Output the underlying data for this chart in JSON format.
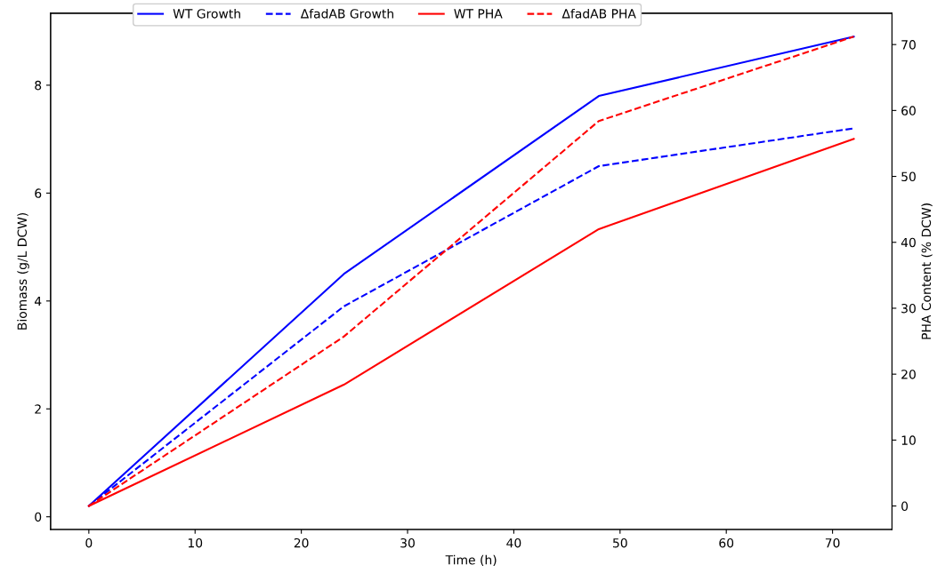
{
  "chart_data": {
    "type": "line",
    "xlabel": "Time (h)",
    "ylabel": "Biomass (g/L DCW)",
    "y2label": "PHA Content (% DCW)",
    "x": [
      0,
      24,
      48,
      72
    ],
    "series": [
      {
        "name": "WT Growth",
        "color": "#0000ff",
        "values": [
          0.2,
          4.5,
          7.8,
          8.9
        ],
        "line_style": "solid"
      },
      {
        "name": "ΔfadAB Growth",
        "color": "#0000ff",
        "values": [
          0.2,
          3.9,
          6.5,
          7.2
        ],
        "line_style": "dashed"
      },
      {
        "name": "WT PHA",
        "color": "#ff0000",
        "values": [
          0,
          18.4,
          42,
          55.7
        ],
        "line_style": "solid",
        "axis": "y2"
      },
      {
        "name": "ΔfadAB PHA",
        "color": "#ff0000",
        "values": [
          0,
          25.7,
          58.4,
          71.2
        ],
        "line_style": "dashed",
        "axis": "y2"
      }
    ],
    "xlim": [
      -3.6,
      75.6
    ],
    "xticks": [
      0,
      10,
      20,
      30,
      40,
      50,
      60,
      70
    ],
    "ylim": [
      -0.235,
      9.335
    ],
    "yticks": [
      0,
      2,
      4,
      6,
      8
    ],
    "y2lim": [
      -3.56,
      74.76
    ],
    "y2ticks": [
      0,
      10,
      20,
      30,
      40,
      50,
      60,
      70
    ],
    "legend": "top",
    "grid": false,
    "marker": "none"
  }
}
